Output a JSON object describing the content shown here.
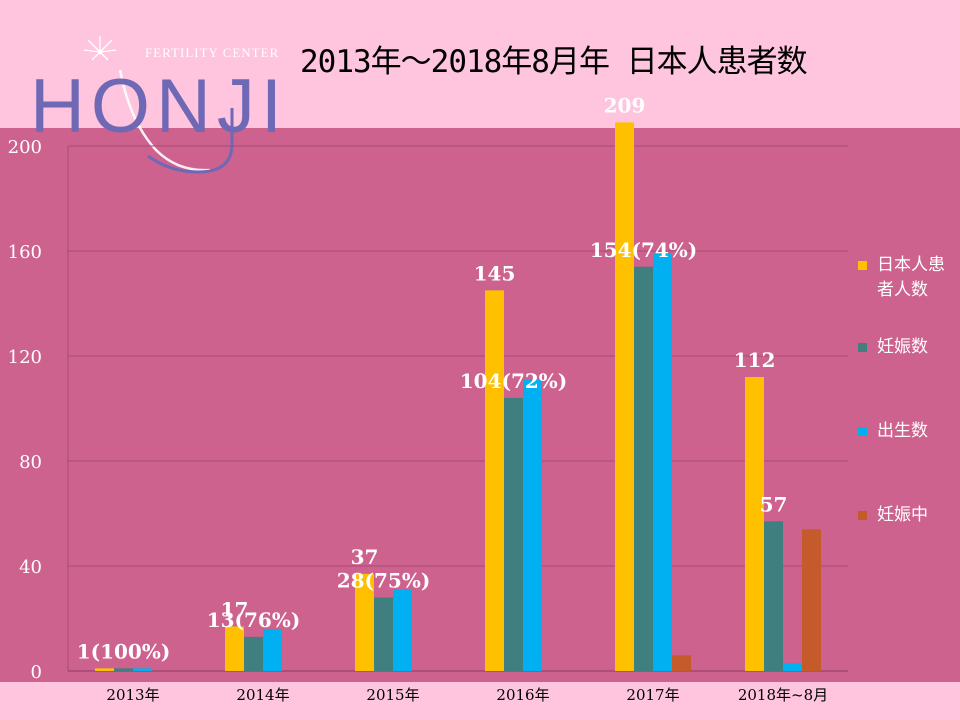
{
  "logo": {
    "name": "HONJI",
    "subtitle": "FERTILITY CENTER"
  },
  "title": "2013年～2018年8月年 日本人患者数",
  "colors": {
    "background": "#FFC4DE",
    "plot_band": "#CE628F",
    "japanese_patients": "#FFC000",
    "pregnancies": "#3F7F80",
    "births": "#00B0F0",
    "ongoing_pregnancy": "#C55A2B"
  },
  "legend": [
    {
      "label": "日本人患者人数",
      "color": "#FFC000"
    },
    {
      "label": "妊娠数",
      "color": "#3F7F80"
    },
    {
      "label": "出生数",
      "color": "#00B0F0"
    },
    {
      "label": "妊娠中",
      "color": "#C55A2B"
    }
  ],
  "chart_data": {
    "type": "bar",
    "title": "2013年～2018年8月年 日本人患者数",
    "categories": [
      "2013年",
      "2014年",
      "2015年",
      "2016年",
      "2017年",
      "2018年~8月"
    ],
    "series": [
      {
        "name": "日本人患者人数",
        "values": [
          1,
          17,
          37,
          145,
          209,
          112
        ]
      },
      {
        "name": "妊娠数",
        "values": [
          1,
          13,
          28,
          104,
          154,
          57
        ]
      },
      {
        "name": "出生数",
        "values": [
          1,
          16,
          31,
          111,
          159,
          3
        ]
      },
      {
        "name": "妊娠中",
        "values": [
          0,
          0,
          0,
          0,
          6,
          54
        ]
      }
    ],
    "ylim": [
      0,
      200
    ],
    "yticks": [
      0,
      40,
      80,
      120,
      160,
      200
    ],
    "legend_position": "right",
    "data_labels": [
      {
        "category": "2013年",
        "series": "妊娠数",
        "text": "1(100%)"
      },
      {
        "category": "2014年",
        "series": "日本人患者人数",
        "text": "17"
      },
      {
        "category": "2014年",
        "series": "妊娠数",
        "text": "13(76%)"
      },
      {
        "category": "2015年",
        "series": "日本人患者人数",
        "text": "37"
      },
      {
        "category": "2015年",
        "series": "妊娠数",
        "text": "28(75%)"
      },
      {
        "category": "2016年",
        "series": "日本人患者人数",
        "text": "145"
      },
      {
        "category": "2016年",
        "series": "妊娠数",
        "text": "104(72%)"
      },
      {
        "category": "2017年",
        "series": "日本人患者人数",
        "text": "209"
      },
      {
        "category": "2017年",
        "series": "妊娠数",
        "text": "154(74%)"
      },
      {
        "category": "2018年~8月",
        "series": "日本人患者人数",
        "text": "112"
      },
      {
        "category": "2018年~8月",
        "series": "妊娠数",
        "text": "57"
      }
    ]
  }
}
